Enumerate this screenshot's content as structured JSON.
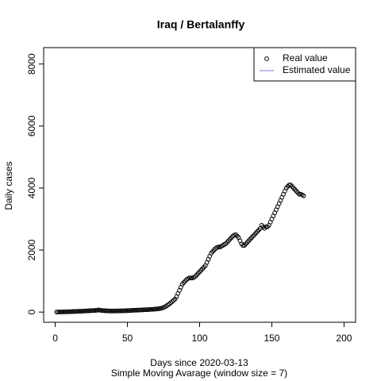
{
  "chart_data": {
    "type": "scatter",
    "title": "Iraq / Bertalanffy",
    "x_label": "Days since 2020-03-13",
    "subtitle": "Simple Moving Avarage (window size = 7)",
    "y_label": "Daily cases",
    "xlim": [
      -8,
      208
    ],
    "xticks": [
      0,
      50,
      100,
      150,
      200
    ],
    "ylim": [
      -328,
      8528
    ],
    "yticks": [
      0,
      2000,
      4000,
      6000,
      8000
    ],
    "legend": "topright",
    "series": [
      {
        "name": "Real value",
        "color": "#000000",
        "marker": "circle",
        "x": [
          1,
          2,
          3,
          4,
          5,
          6,
          7,
          8,
          9,
          10,
          11,
          12,
          13,
          14,
          15,
          16,
          17,
          18,
          19,
          20,
          21,
          22,
          23,
          24,
          25,
          26,
          27,
          28,
          29,
          30,
          31,
          32,
          33,
          34,
          35,
          36,
          37,
          38,
          39,
          40,
          41,
          42,
          43,
          44,
          45,
          46,
          47,
          48,
          49,
          50,
          51,
          52,
          53,
          54,
          55,
          56,
          57,
          58,
          59,
          60,
          61,
          62,
          63,
          64,
          65,
          66,
          67,
          68,
          69,
          70,
          71,
          72,
          73,
          74,
          75,
          76,
          77,
          78,
          79,
          80,
          81,
          82,
          83,
          84,
          85,
          86,
          87,
          88,
          89,
          90,
          91,
          92,
          93,
          94,
          95,
          96,
          97,
          98,
          99,
          100,
          101,
          102,
          103,
          104,
          105,
          106,
          107,
          108,
          109,
          110,
          111,
          112,
          113,
          114,
          115,
          116,
          117,
          118,
          119,
          120,
          121,
          122,
          123,
          124,
          125,
          126,
          127,
          128,
          129,
          130,
          131,
          132,
          133,
          134,
          135,
          136,
          137,
          138,
          139,
          140,
          141,
          142,
          143,
          144,
          145,
          146,
          147,
          148,
          149,
          150,
          151,
          152,
          153,
          154,
          155,
          156,
          157,
          158,
          159,
          160,
          161,
          162,
          163,
          164,
          165,
          166,
          167,
          168,
          169,
          170,
          171,
          172
        ],
        "values": [
          2,
          3,
          4,
          5,
          6,
          7,
          8,
          10,
          11,
          13,
          15,
          17,
          19,
          21,
          23,
          25,
          27,
          29,
          31,
          33,
          36,
          39,
          42,
          45,
          48,
          50,
          52,
          55,
          60,
          70,
          60,
          55,
          50,
          45,
          42,
          40,
          38,
          36,
          35,
          35,
          35,
          36,
          37,
          38,
          39,
          40,
          42,
          44,
          46,
          48,
          50,
          52,
          55,
          58,
          60,
          62,
          64,
          66,
          68,
          70,
          72,
          75,
          78,
          80,
          82,
          85,
          88,
          92,
          96,
          100,
          105,
          110,
          120,
          130,
          150,
          170,
          200,
          230,
          260,
          300,
          340,
          380,
          420,
          500,
          600,
          700,
          800,
          900,
          950,
          1000,
          1050,
          1080,
          1100,
          1100,
          1100,
          1120,
          1150,
          1200,
          1250,
          1300,
          1350,
          1400,
          1450,
          1500,
          1600,
          1700,
          1800,
          1900,
          1950,
          2000,
          2050,
          2080,
          2100,
          2100,
          2120,
          2150,
          2180,
          2200,
          2250,
          2300,
          2350,
          2400,
          2450,
          2480,
          2500,
          2450,
          2400,
          2300,
          2200,
          2150,
          2150,
          2200,
          2250,
          2300,
          2350,
          2400,
          2450,
          2500,
          2550,
          2600,
          2650,
          2700,
          2800,
          2750,
          2700,
          2750,
          2750,
          2800,
          2900,
          3000,
          3100,
          3200,
          3300,
          3400,
          3500,
          3600,
          3700,
          3800,
          3900,
          4000,
          4050,
          4100,
          4100,
          4050,
          4000,
          3950,
          3900,
          3850,
          3800,
          3800,
          3780,
          3750
        ]
      },
      {
        "name": "Estimated value",
        "color": "#9370db",
        "marker": "line"
      }
    ]
  }
}
